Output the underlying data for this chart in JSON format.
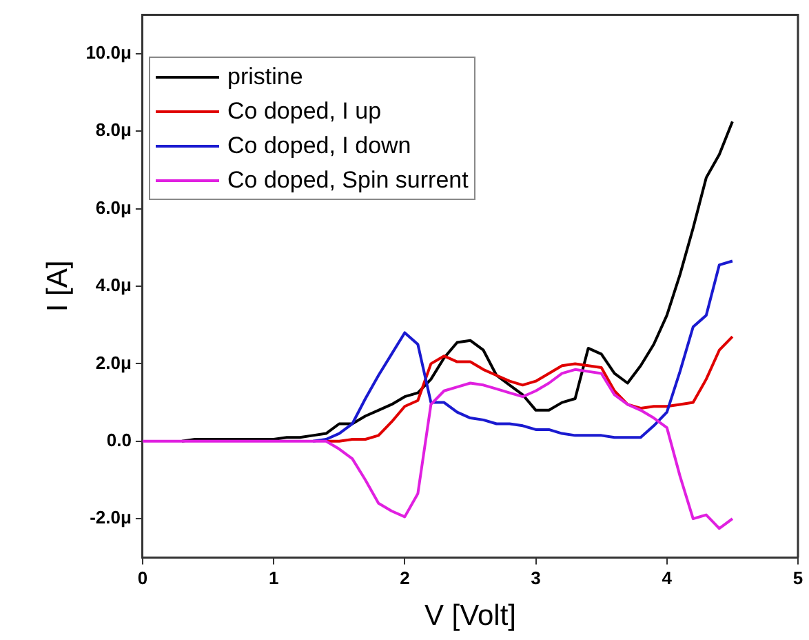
{
  "chart_data": {
    "type": "line",
    "xlabel": "V [Volt]",
    "ylabel": "I [A]",
    "x": [
      0,
      0.1,
      0.2,
      0.3,
      0.4,
      0.5,
      0.6,
      0.7,
      0.8,
      0.9,
      1,
      1.1,
      1.2,
      1.3,
      1.4,
      1.5,
      1.6,
      1.7,
      1.8,
      1.9,
      2,
      2.1,
      2.2,
      2.3,
      2.4,
      2.5,
      2.6,
      2.7,
      2.8,
      2.9,
      3,
      3.1,
      3.2,
      3.3,
      3.4,
      3.5,
      3.6,
      3.7,
      3.8,
      3.9,
      4,
      4.1,
      4.2,
      4.3,
      4.4,
      4.5
    ],
    "series": [
      {
        "name": "pristine",
        "color": "#000000",
        "values": [
          null,
          null,
          null,
          0,
          0.05,
          0.05,
          0.05,
          0.05,
          0.05,
          0.05,
          0.05,
          0.1,
          0.1,
          0.15,
          0.2,
          0.45,
          0.45,
          0.65,
          0.8,
          0.95,
          1.15,
          1.25,
          1.6,
          2.15,
          2.55,
          2.6,
          2.35,
          1.7,
          1.45,
          1.2,
          0.8,
          0.8,
          1.0,
          1.1,
          2.4,
          2.25,
          1.75,
          1.5,
          1.95,
          2.5,
          3.25,
          4.3,
          5.5,
          6.8,
          7.4,
          8.25
        ]
      },
      {
        "name": "Co doped, I up",
        "color": "#e00000",
        "values": [
          null,
          null,
          null,
          null,
          null,
          null,
          null,
          null,
          null,
          null,
          null,
          null,
          null,
          null,
          0,
          0,
          0.05,
          0.05,
          0.15,
          0.5,
          0.9,
          1.05,
          2.0,
          2.2,
          2.05,
          2.05,
          1.85,
          1.7,
          1.55,
          1.45,
          1.55,
          1.75,
          1.95,
          2.0,
          1.95,
          1.9,
          1.3,
          0.95,
          0.85,
          0.9,
          0.9,
          0.95,
          1.0,
          1.6,
          2.35,
          2.7
        ]
      },
      {
        "name": "Co doped, I down",
        "color": "#1a1ad0",
        "values": [
          null,
          null,
          null,
          null,
          null,
          null,
          null,
          null,
          null,
          null,
          null,
          null,
          null,
          0,
          0.05,
          0.2,
          0.45,
          1.1,
          1.7,
          2.25,
          2.8,
          2.5,
          1.0,
          1.0,
          0.75,
          0.6,
          0.55,
          0.45,
          0.45,
          0.4,
          0.3,
          0.3,
          0.2,
          0.15,
          0.15,
          0.15,
          0.1,
          0.1,
          0.1,
          0.4,
          0.75,
          1.8,
          2.95,
          3.25,
          4.55,
          4.65
        ]
      },
      {
        "name": "Co doped, Spin surrent",
        "color": "#e020e0",
        "values": [
          0,
          0,
          0,
          0,
          0,
          0,
          0,
          0,
          0,
          0,
          0,
          0,
          0,
          0,
          0,
          -0.2,
          -0.45,
          -1.0,
          -1.6,
          -1.8,
          -1.95,
          -1.35,
          0.95,
          1.3,
          1.4,
          1.5,
          1.45,
          1.35,
          1.25,
          1.15,
          1.3,
          1.5,
          1.75,
          1.85,
          1.8,
          1.75,
          1.2,
          0.95,
          0.8,
          0.6,
          0.35,
          -0.9,
          -2.0,
          -1.9,
          -2.25,
          -2.0
        ]
      }
    ],
    "xlim": [
      0,
      5
    ],
    "xticks": [
      0,
      1,
      2,
      3,
      4,
      5
    ],
    "ylim": [
      -3,
      11
    ],
    "yticks": [
      {
        "value": -2,
        "label": "-2.0μ"
      },
      {
        "value": 0,
        "label": "0.0"
      },
      {
        "value": 2,
        "label": "2.0μ"
      },
      {
        "value": 4,
        "label": "4.0μ"
      },
      {
        "value": 6,
        "label": "6.0μ"
      },
      {
        "value": 8,
        "label": "8.0μ"
      },
      {
        "value": 10,
        "label": "10.0μ"
      }
    ],
    "legend": "top left",
    "grid": false,
    "marker": "none",
    "line_style": "solid"
  }
}
